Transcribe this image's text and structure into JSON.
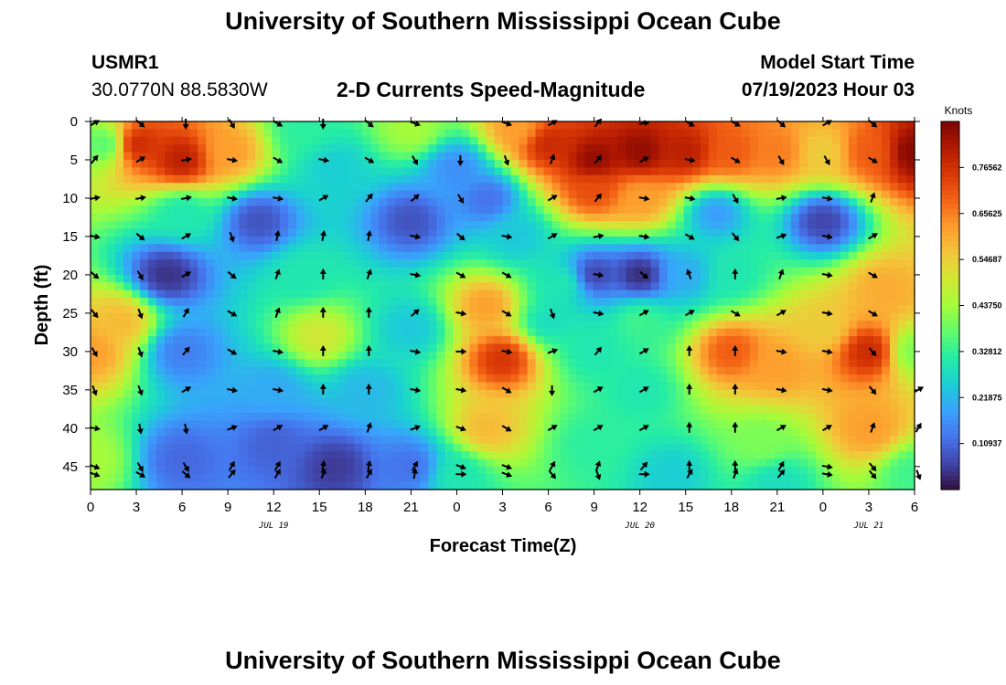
{
  "page": {
    "title": "University of Southern Mississippi Ocean Cube",
    "station_id": "USMR1",
    "station_location": "30.0770N  88.5830W",
    "plot_subtitle": "2-D Currents Speed-Magnitude",
    "model_label": "Model Start Time",
    "model_start": "07/19/2023 Hour 03",
    "footer_title": "University of Southern Mississippi Ocean Cube"
  },
  "chart_data": {
    "type": "heatmap",
    "title": "2-D Currents Speed-Magnitude",
    "xlabel": "Forecast Time(Z)",
    "ylabel": "Depth (ft)",
    "x_tick_labels": [
      "0",
      "3",
      "6",
      "9",
      "12",
      "15",
      "18",
      "21",
      "0",
      "3",
      "6",
      "9",
      "12",
      "15",
      "18",
      "21",
      "0",
      "3",
      "6"
    ],
    "x_hours_since_start": [
      0,
      3,
      6,
      9,
      12,
      15,
      18,
      21,
      24,
      27,
      30,
      33,
      36,
      39,
      42,
      45,
      48,
      51,
      54
    ],
    "date_labels": [
      {
        "label": "JUL 19",
        "hour": 12
      },
      {
        "label": "JUL 20",
        "hour": 36
      },
      {
        "label": "JUL 21",
        "hour": 51
      }
    ],
    "xlim": [
      0,
      54
    ],
    "y_ticks": [
      0,
      5,
      10,
      15,
      20,
      25,
      30,
      35,
      40,
      45
    ],
    "ylim": [
      0,
      48
    ],
    "y_inverted": true,
    "colorbar": {
      "title": "Knots",
      "range": [
        0,
        0.875
      ],
      "tick_values": [
        0.10937,
        0.21875,
        0.32812,
        0.4375,
        0.54687,
        0.65625,
        0.76562
      ],
      "tick_labels": [
        "0.10937",
        "0.21875",
        "0.32812",
        "0.43750",
        "0.54687",
        "0.65625",
        "0.76562"
      ],
      "colors": [
        "#30123b",
        "#4145ab",
        "#4675ed",
        "#39a2fc",
        "#1bcfd4",
        "#24eca6",
        "#61fc6c",
        "#a4fc3b",
        "#d1e834",
        "#f3c63a",
        "#fe9b2d",
        "#f36315",
        "#d93806",
        "#b11901",
        "#7a0403"
      ]
    },
    "speed_anchors": [
      {
        "hour": 3,
        "depth": 3,
        "speed": 0.78
      },
      {
        "hour": 6,
        "depth": 5,
        "speed": 0.8
      },
      {
        "hour": 9,
        "depth": 4,
        "speed": 0.62
      },
      {
        "hour": 1,
        "depth": 3,
        "speed": 0.36
      },
      {
        "hour": 14,
        "depth": 1,
        "speed": 0.32
      },
      {
        "hour": 21,
        "depth": 1,
        "speed": 0.44
      },
      {
        "hour": 28,
        "depth": 1,
        "speed": 0.62
      },
      {
        "hour": 30,
        "depth": 3,
        "speed": 0.78
      },
      {
        "hour": 33,
        "depth": 5,
        "speed": 0.85
      },
      {
        "hour": 36,
        "depth": 4,
        "speed": 0.85
      },
      {
        "hour": 39,
        "depth": 4,
        "speed": 0.8
      },
      {
        "hour": 42,
        "depth": 4,
        "speed": 0.7
      },
      {
        "hour": 45,
        "depth": 4,
        "speed": 0.66
      },
      {
        "hour": 48,
        "depth": 4,
        "speed": 0.55
      },
      {
        "hour": 51,
        "depth": 4,
        "speed": 0.7
      },
      {
        "hour": 54,
        "depth": 4,
        "speed": 0.86
      },
      {
        "hour": 33,
        "depth": 9,
        "speed": 0.72
      },
      {
        "hour": 36,
        "depth": 10,
        "speed": 0.62
      },
      {
        "hour": 16,
        "depth": 6,
        "speed": 0.25
      },
      {
        "hour": 24,
        "depth": 6,
        "speed": 0.16
      },
      {
        "hour": 26,
        "depth": 10,
        "speed": 0.12
      },
      {
        "hour": 6,
        "depth": 12,
        "speed": 0.3
      },
      {
        "hour": 11,
        "depth": 13,
        "speed": 0.08
      },
      {
        "hour": 21,
        "depth": 13,
        "speed": 0.08
      },
      {
        "hour": 48,
        "depth": 13,
        "speed": 0.06
      },
      {
        "hour": 41,
        "depth": 12,
        "speed": 0.18
      },
      {
        "hour": 28,
        "depth": 15,
        "speed": 0.24
      },
      {
        "hour": 5,
        "depth": 20,
        "speed": 0.04
      },
      {
        "hour": 6,
        "depth": 30,
        "speed": 0.14
      },
      {
        "hour": 6,
        "depth": 44,
        "speed": 0.11
      },
      {
        "hour": 0,
        "depth": 30,
        "speed": 0.62
      },
      {
        "hour": 2,
        "depth": 26,
        "speed": 0.58
      },
      {
        "hour": 0,
        "depth": 44,
        "speed": 0.44
      },
      {
        "hour": 14,
        "depth": 20,
        "speed": 0.3
      },
      {
        "hour": 15,
        "depth": 28,
        "speed": 0.5
      },
      {
        "hour": 18,
        "depth": 35,
        "speed": 0.22
      },
      {
        "hour": 12,
        "depth": 35,
        "speed": 0.2
      },
      {
        "hour": 12,
        "depth": 42,
        "speed": 0.1
      },
      {
        "hour": 16,
        "depth": 45,
        "speed": 0.05
      },
      {
        "hour": 21,
        "depth": 45,
        "speed": 0.12
      },
      {
        "hour": 21,
        "depth": 27,
        "speed": 0.24
      },
      {
        "hour": 27,
        "depth": 31,
        "speed": 0.76
      },
      {
        "hour": 26,
        "depth": 24,
        "speed": 0.62
      },
      {
        "hour": 26,
        "depth": 40,
        "speed": 0.58
      },
      {
        "hour": 24,
        "depth": 46,
        "speed": 0.3
      },
      {
        "hour": 31,
        "depth": 21,
        "speed": 0.3
      },
      {
        "hour": 33,
        "depth": 20,
        "speed": 0.06
      },
      {
        "hour": 36,
        "depth": 20,
        "speed": 0.03
      },
      {
        "hour": 33,
        "depth": 30,
        "speed": 0.3
      },
      {
        "hour": 33,
        "depth": 42,
        "speed": 0.32
      },
      {
        "hour": 36,
        "depth": 35,
        "speed": 0.3
      },
      {
        "hour": 39,
        "depth": 20,
        "speed": 0.2
      },
      {
        "hour": 42,
        "depth": 20,
        "speed": 0.3
      },
      {
        "hour": 42,
        "depth": 30,
        "speed": 0.7
      },
      {
        "hour": 45,
        "depth": 32,
        "speed": 0.62
      },
      {
        "hour": 44,
        "depth": 42,
        "speed": 0.4
      },
      {
        "hour": 48,
        "depth": 27,
        "speed": 0.55
      },
      {
        "hour": 51,
        "depth": 30,
        "speed": 0.78
      },
      {
        "hour": 52,
        "depth": 22,
        "speed": 0.6
      },
      {
        "hour": 51,
        "depth": 40,
        "speed": 0.62
      },
      {
        "hour": 54,
        "depth": 30,
        "speed": 0.4
      },
      {
        "hour": 54,
        "depth": 46,
        "speed": 0.34
      },
      {
        "hour": 45,
        "depth": 47,
        "speed": 0.28
      },
      {
        "hour": 38,
        "depth": 46,
        "speed": 0.25
      },
      {
        "hour": 36,
        "depth": 26,
        "speed": 0.34
      },
      {
        "hour": 30,
        "depth": 26,
        "speed": 0.28
      }
    ],
    "vector_angles": [
      [
        60,
        130,
        180,
        150,
        120,
        180,
        130,
        110,
        null,
        110,
        60,
        40,
        80,
        120,
        120,
        130,
        60,
        130,
        null
      ],
      [
        40,
        60,
        80,
        100,
        120,
        100,
        120,
        150,
        180,
        160,
        20,
        40,
        60,
        100,
        120,
        150,
        150,
        120,
        null
      ],
      [
        80,
        80,
        80,
        100,
        100,
        60,
        40,
        50,
        150,
        null,
        60,
        40,
        100,
        100,
        150,
        80,
        100,
        20,
        null
      ],
      [
        100,
        130,
        60,
        160,
        10,
        10,
        10,
        100,
        130,
        100,
        60,
        80,
        100,
        120,
        140,
        70,
        100,
        60,
        null
      ],
      [
        130,
        150,
        60,
        130,
        20,
        0,
        20,
        100,
        120,
        120,
        null,
        100,
        130,
        340,
        0,
        20,
        100,
        120,
        null
      ],
      [
        140,
        160,
        30,
        120,
        20,
        0,
        0,
        50,
        100,
        120,
        160,
        100,
        60,
        60,
        120,
        60,
        100,
        120,
        null
      ],
      [
        150,
        160,
        40,
        120,
        100,
        0,
        0,
        100,
        90,
        100,
        70,
        40,
        60,
        0,
        0,
        100,
        100,
        140,
        null
      ],
      [
        160,
        160,
        60,
        100,
        100,
        0,
        0,
        100,
        100,
        120,
        180,
        60,
        60,
        0,
        0,
        100,
        100,
        140,
        60
      ],
      [
        100,
        170,
        170,
        70,
        60,
        60,
        20,
        70,
        110,
        120,
        60,
        60,
        60,
        0,
        0,
        60,
        60,
        20,
        30
      ],
      [
        110,
        150,
        150,
        30,
        30,
        10,
        10,
        30,
        110,
        110,
        30,
        20,
        40,
        0,
        0,
        30,
        100,
        140,
        null
      ],
      [
        110,
        120,
        130,
        40,
        30,
        20,
        30,
        10,
        90,
        110,
        140,
        160,
        90,
        30,
        20,
        40,
        100,
        140,
        160
      ]
    ]
  }
}
